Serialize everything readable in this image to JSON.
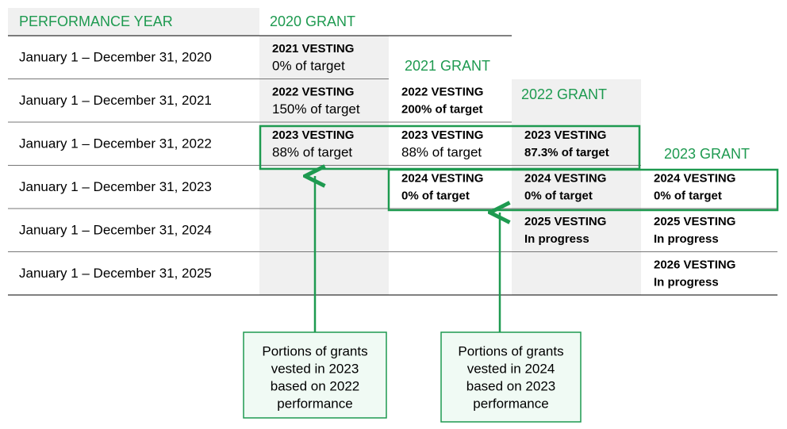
{
  "header": {
    "performance_year": "PERFORMANCE YEAR",
    "grants": [
      "2020 GRANT",
      "2021 GRANT",
      "2022 GRANT",
      "2023 GRANT"
    ]
  },
  "rows": [
    {
      "label": "January 1 – December 31, 2020",
      "cells": [
        {
          "col": 0,
          "title": "2021 VESTING",
          "detail": "0% of target",
          "detail_bold": false
        }
      ]
    },
    {
      "label": "January 1 – December 31, 2021",
      "cells": [
        {
          "col": 0,
          "title": "2022 VESTING",
          "detail": "150% of target",
          "detail_bold": false
        },
        {
          "col": 1,
          "title": "2022 VESTING",
          "detail": "200% of target",
          "detail_bold": true
        }
      ]
    },
    {
      "label": "January 1 – December 31, 2022",
      "cells": [
        {
          "col": 0,
          "title": "2023 VESTING",
          "detail": "88% of target",
          "detail_bold": false
        },
        {
          "col": 1,
          "title": "2023 VESTING",
          "detail": "88% of target",
          "detail_bold": false
        },
        {
          "col": 2,
          "title": "2023 VESTING",
          "detail": "87.3% of target",
          "detail_bold": true
        }
      ]
    },
    {
      "label": "January 1 – December 31, 2023",
      "cells": [
        {
          "col": 1,
          "title": "2024 VESTING",
          "detail": "0% of target",
          "detail_bold": true
        },
        {
          "col": 2,
          "title": "2024 VESTING",
          "detail": "0% of target",
          "detail_bold": true
        },
        {
          "col": 3,
          "title": "2024 VESTING",
          "detail": "0% of target",
          "detail_bold": true
        }
      ]
    },
    {
      "label": "January 1 – December 31, 2024",
      "cells": [
        {
          "col": 2,
          "title": "2025 VESTING",
          "detail": "In progress",
          "detail_bold": true
        },
        {
          "col": 3,
          "title": "2025 VESTING",
          "detail": "In progress",
          "detail_bold": true
        }
      ]
    },
    {
      "label": "January 1 – December 31, 2025",
      "cells": [
        {
          "col": 3,
          "title": "2026 VESTING",
          "detail": "In progress",
          "detail_bold": true
        }
      ]
    }
  ],
  "callouts": [
    {
      "lines": [
        "Portions of grants",
        "vested in 2023",
        "based on 2022",
        "performance"
      ]
    },
    {
      "lines": [
        "Portions of grants",
        "vested in 2024",
        "based on 2023",
        "performance"
      ]
    }
  ]
}
